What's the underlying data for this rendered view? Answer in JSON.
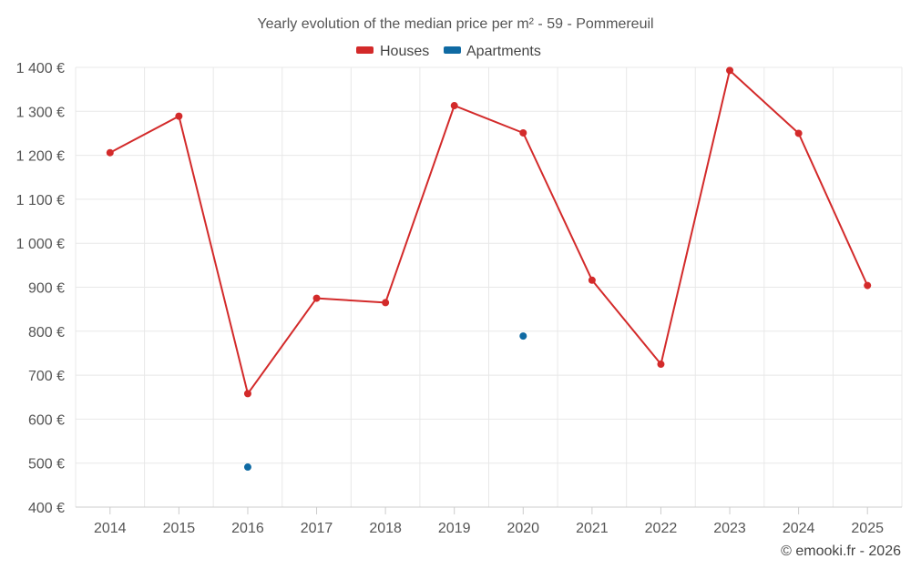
{
  "chart_data": {
    "type": "line",
    "title": "Yearly evolution of the median price per m² - 59 - Pommereuil",
    "xlabel": "",
    "ylabel": "",
    "categories": [
      "2014",
      "2015",
      "2016",
      "2017",
      "2018",
      "2019",
      "2020",
      "2021",
      "2022",
      "2023",
      "2024",
      "2025"
    ],
    "ylim": [
      400,
      1400
    ],
    "yticks": [
      400,
      500,
      600,
      700,
      800,
      900,
      1000,
      1100,
      1200,
      1300,
      1400
    ],
    "ytick_labels": [
      "400 €",
      "500 €",
      "600 €",
      "700 €",
      "800 €",
      "900 €",
      "1 000 €",
      "1 100 €",
      "1 200 €",
      "1 300 €",
      "1 400 €"
    ],
    "grid": true,
    "legend_position": "top-center",
    "series": [
      {
        "name": "Houses",
        "color": "#d32a2a",
        "values": [
          1206,
          1289,
          658,
          875,
          865,
          1313,
          1251,
          916,
          725,
          1393,
          1250,
          904
        ]
      },
      {
        "name": "Apartments",
        "color": "#0f6aa3",
        "values": [
          null,
          null,
          491,
          null,
          null,
          null,
          789,
          null,
          null,
          null,
          null,
          null
        ]
      }
    ]
  },
  "credit": "© emooki.fr - 2026"
}
